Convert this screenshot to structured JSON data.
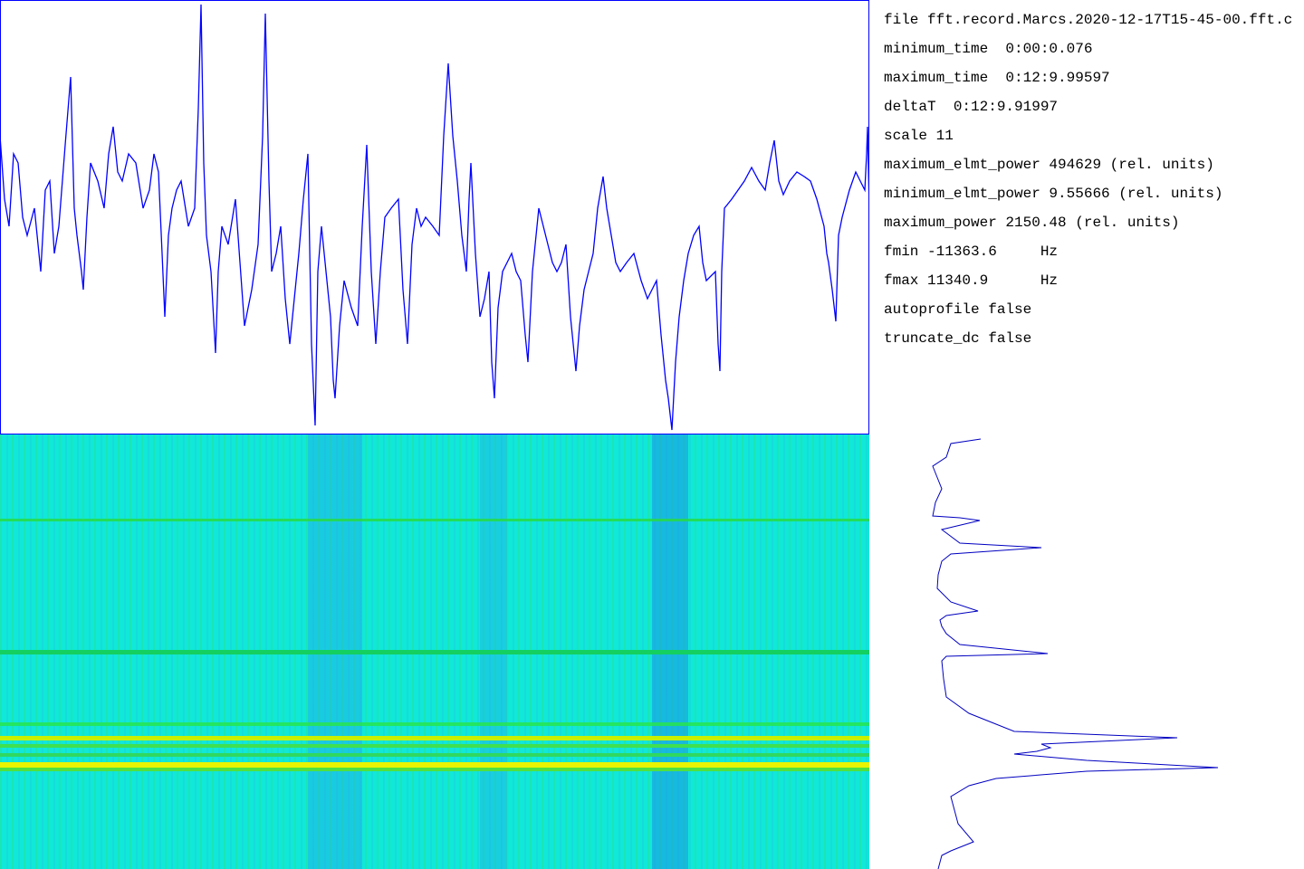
{
  "info": {
    "lines": [
      "file fft.record.Marcs.2020-12-17T15-45-00.fft.c",
      "minimum_time  0:00:0.076",
      "maximum_time  0:12:9.99597",
      "deltaT  0:12:9.91997",
      "scale 11",
      "maximum_elmt_power 494629 (rel. units)",
      "minimum_elmt_power 9.55666 (rel. units)",
      "maximum_power 2150.48 (rel. units)",
      "fmin -11363.6     Hz",
      "fmax 11340.9      Hz",
      "autoprofile false",
      "truncate_dc false"
    ]
  }
}
